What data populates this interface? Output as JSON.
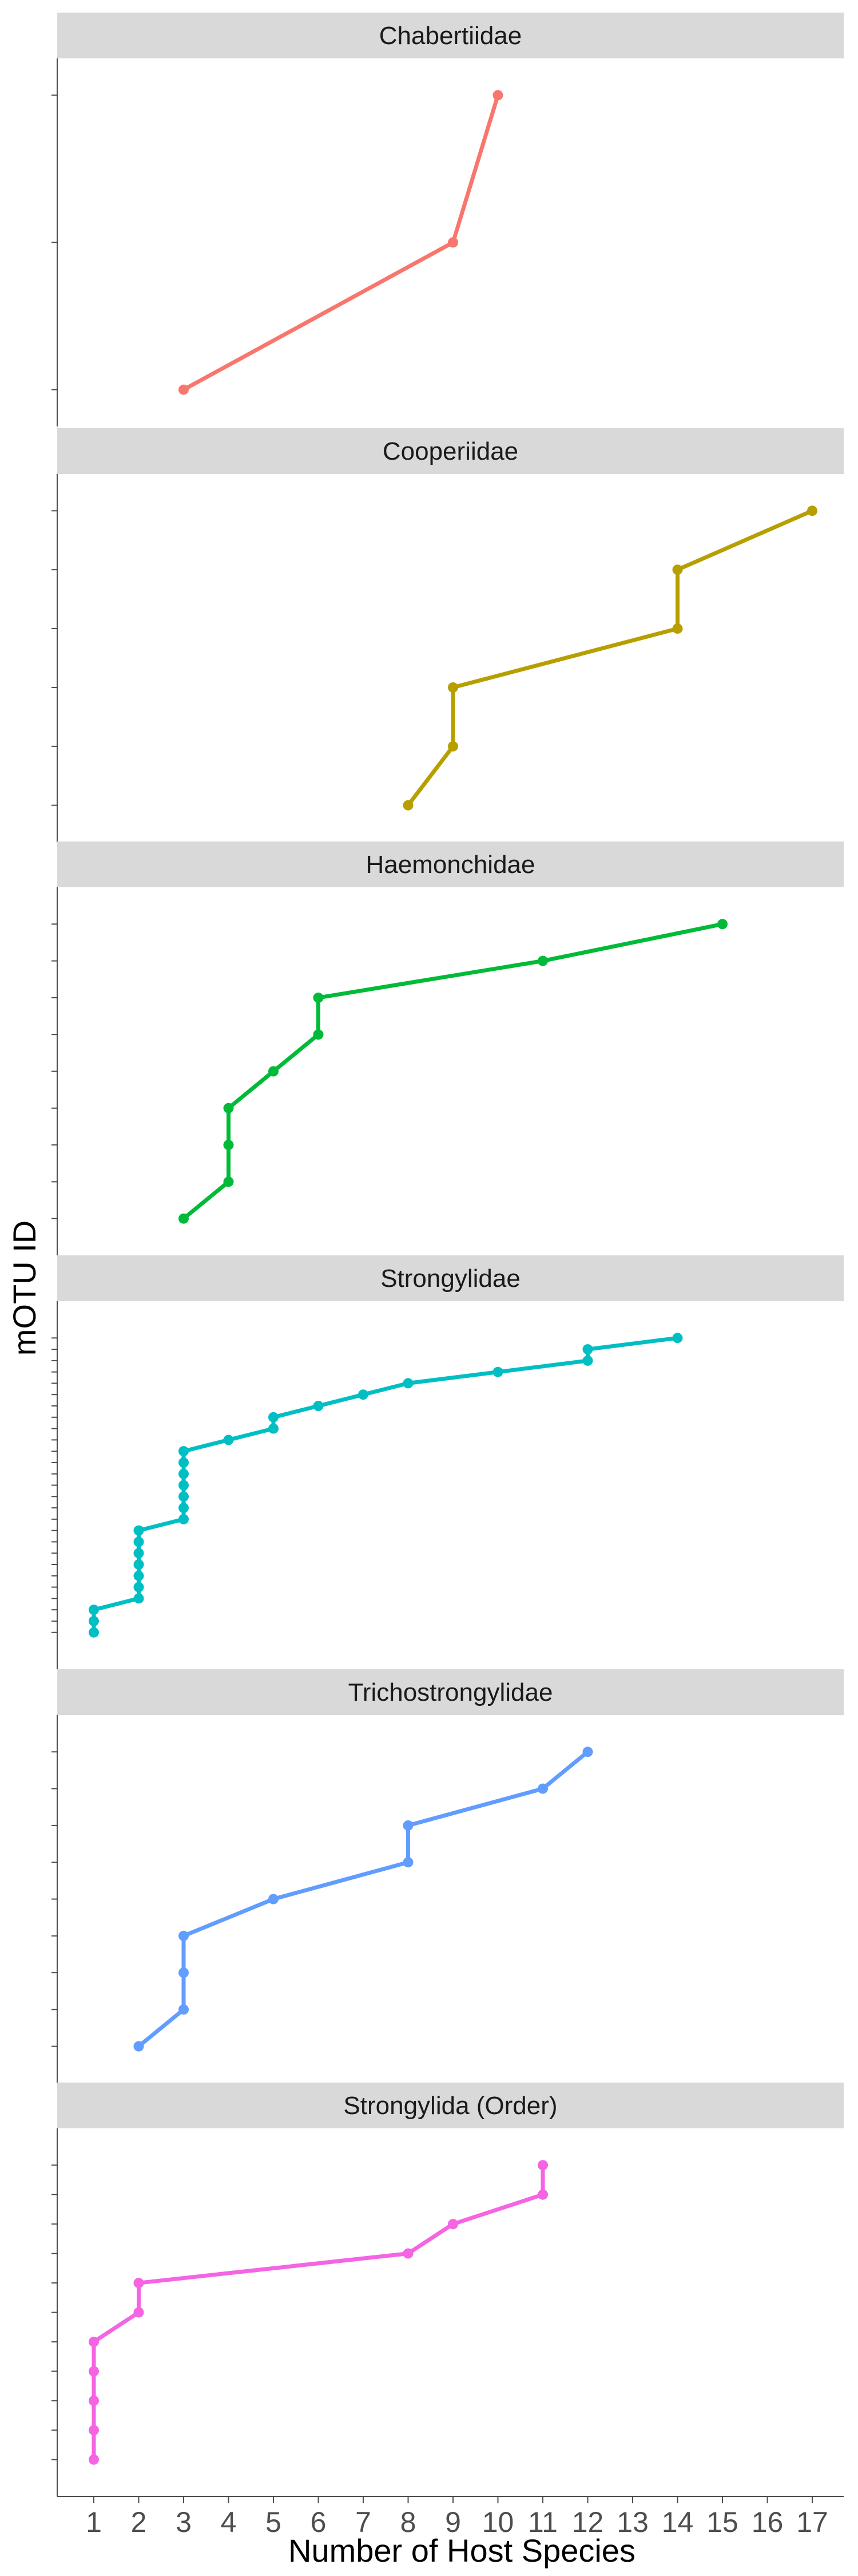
{
  "chart_data": {
    "type": "line",
    "xlabel": "Number of Host Species",
    "ylabel": "mOTU ID",
    "x_ticks": [
      1,
      2,
      3,
      4,
      5,
      6,
      7,
      8,
      9,
      10,
      11,
      12,
      13,
      14,
      15,
      16,
      17
    ],
    "xlim": [
      0.3,
      17.7
    ],
    "y_tick_labels_shown": false,
    "grid": false,
    "legend": "none",
    "panels": [
      {
        "family": "Chabertiidae",
        "color": "#F8766D",
        "points": [
          [
            3,
            1
          ],
          [
            9,
            2
          ],
          [
            10,
            3
          ]
        ]
      },
      {
        "family": "Cooperiidae",
        "color": "#B79F00",
        "points": [
          [
            8,
            1
          ],
          [
            9,
            2
          ],
          [
            9,
            3
          ],
          [
            14,
            4
          ],
          [
            14,
            5
          ],
          [
            17,
            6
          ]
        ]
      },
      {
        "family": "Haemonchidae",
        "color": "#00BA38",
        "points": [
          [
            3,
            1
          ],
          [
            4,
            2
          ],
          [
            4,
            3
          ],
          [
            4,
            4
          ],
          [
            5,
            5
          ],
          [
            6,
            6
          ],
          [
            6,
            7
          ],
          [
            11,
            8
          ],
          [
            15,
            9
          ]
        ]
      },
      {
        "family": "Strongylidae",
        "color": "#00BFC4",
        "points": [
          [
            1,
            1
          ],
          [
            1,
            2
          ],
          [
            1,
            3
          ],
          [
            2,
            4
          ],
          [
            2,
            5
          ],
          [
            2,
            6
          ],
          [
            2,
            7
          ],
          [
            2,
            8
          ],
          [
            2,
            9
          ],
          [
            2,
            10
          ],
          [
            3,
            11
          ],
          [
            3,
            12
          ],
          [
            3,
            13
          ],
          [
            3,
            14
          ],
          [
            3,
            15
          ],
          [
            3,
            16
          ],
          [
            3,
            17
          ],
          [
            4,
            18
          ],
          [
            5,
            19
          ],
          [
            5,
            20
          ],
          [
            6,
            21
          ],
          [
            7,
            22
          ],
          [
            8,
            23
          ],
          [
            10,
            24
          ],
          [
            12,
            25
          ],
          [
            12,
            26
          ],
          [
            14,
            27
          ]
        ]
      },
      {
        "family": "Trichostrongylidae",
        "color": "#619CFF",
        "points": [
          [
            2,
            1
          ],
          [
            3,
            2
          ],
          [
            3,
            3
          ],
          [
            3,
            4
          ],
          [
            5,
            5
          ],
          [
            8,
            6
          ],
          [
            8,
            7
          ],
          [
            11,
            8
          ],
          [
            12,
            9
          ]
        ]
      },
      {
        "family": "Strongylida (Order)",
        "color": "#F564E3",
        "points": [
          [
            1,
            1
          ],
          [
            1,
            2
          ],
          [
            1,
            3
          ],
          [
            1,
            4
          ],
          [
            1,
            5
          ],
          [
            2,
            6
          ],
          [
            2,
            7
          ],
          [
            8,
            8
          ],
          [
            9,
            9
          ],
          [
            11,
            10
          ],
          [
            11,
            11
          ]
        ]
      }
    ]
  }
}
